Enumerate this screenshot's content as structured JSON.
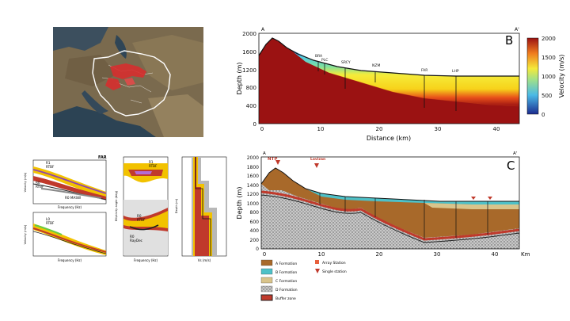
{
  "panel_b": {
    "letter": "B",
    "profile_start": "A",
    "profile_end": "A'",
    "xlabel": "Distance (km)",
    "ylabel": "Depth (m)",
    "x_ticks": [
      "0",
      "10",
      "20",
      "30",
      "40"
    ],
    "y_ticks": [
      "0",
      "400",
      "800",
      "1200",
      "1600",
      "2000"
    ],
    "stations": [
      "BRA",
      "PLC",
      "SRCY",
      "NZM",
      "FAR",
      "LHP"
    ],
    "colorbar_label": "Velocity (m/s)",
    "colorbar_ticks": [
      "0",
      "500",
      "1000",
      "1500",
      "2000"
    ]
  },
  "panel_c": {
    "letter": "C",
    "profile_start": "A",
    "profile_end": "A'",
    "ylabel": "Depth (m)",
    "x_ticks": [
      "0",
      "10",
      "20",
      "30",
      "40"
    ],
    "y_ticks": [
      "0",
      "200",
      "400",
      "600",
      "800",
      "1000",
      "1200",
      "1400",
      "1600",
      "1800",
      "2000"
    ],
    "unit": "Km",
    "callouts": [
      "NTP",
      "Lavizan"
    ],
    "legend": [
      {
        "label": "A Formation",
        "color": "#a8692a"
      },
      {
        "label": "B Formation",
        "color": "#4ec1c8"
      },
      {
        "label": "C Formation",
        "color": "#d9c48b"
      },
      {
        "label": "D Formation",
        "color": "#bcbcbc"
      },
      {
        "label": "Buffer zone",
        "color": "#c0392b"
      }
    ],
    "legend_markers": [
      "Array Station",
      "Single station"
    ]
  },
  "far": {
    "title": "FAR",
    "left_labels": [
      "R1",
      "RTBF",
      "R0",
      "RTBF",
      "R0 MASW",
      "L0",
      "RTBF"
    ],
    "left_xlabel": "Frequency (Hz)",
    "left_ylabel": "Velocity (m/s)",
    "mid_labels": [
      "R1",
      "RTBF",
      "R0",
      "RTBF",
      "R0",
      "RayDec"
    ],
    "mid_ylabel": "Ellipticity angle (deg)",
    "mid_xlabel": "Frequency (Hz)",
    "right_xlabel": "Vs (m/s)",
    "right_ylabel": "Depth (m)"
  }
}
